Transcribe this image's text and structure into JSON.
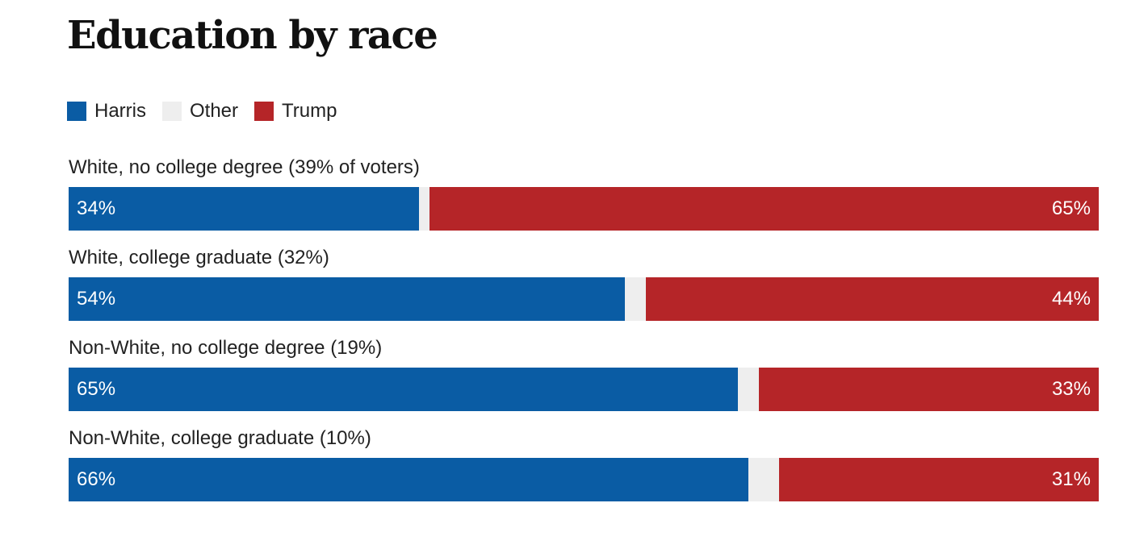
{
  "chart_data": {
    "type": "bar",
    "orientation": "horizontal",
    "stacked": true,
    "title": "Education by race",
    "legend": {
      "placement": "top-left",
      "entries": [
        "Harris",
        "Other",
        "Trump"
      ]
    },
    "categories": [
      "White, no college degree (39% of voters)",
      "White, college graduate (32%)",
      "Non-White, no college degree (19%)",
      "Non-White, college graduate (10%)"
    ],
    "series": [
      {
        "name": "Harris",
        "values": [
          34,
          54,
          65,
          66
        ],
        "labels": [
          "34%",
          "54%",
          "65%",
          "66%"
        ],
        "color": "#0a5ca4"
      },
      {
        "name": "Other",
        "values": [
          1,
          2,
          2,
          3
        ],
        "color": "#eeeeee"
      },
      {
        "name": "Trump",
        "values": [
          65,
          44,
          33,
          31
        ],
        "labels": [
          "65%",
          "44%",
          "33%",
          "31%"
        ],
        "color": "#b52528"
      }
    ],
    "xlim": [
      0,
      100
    ],
    "grid": false
  }
}
